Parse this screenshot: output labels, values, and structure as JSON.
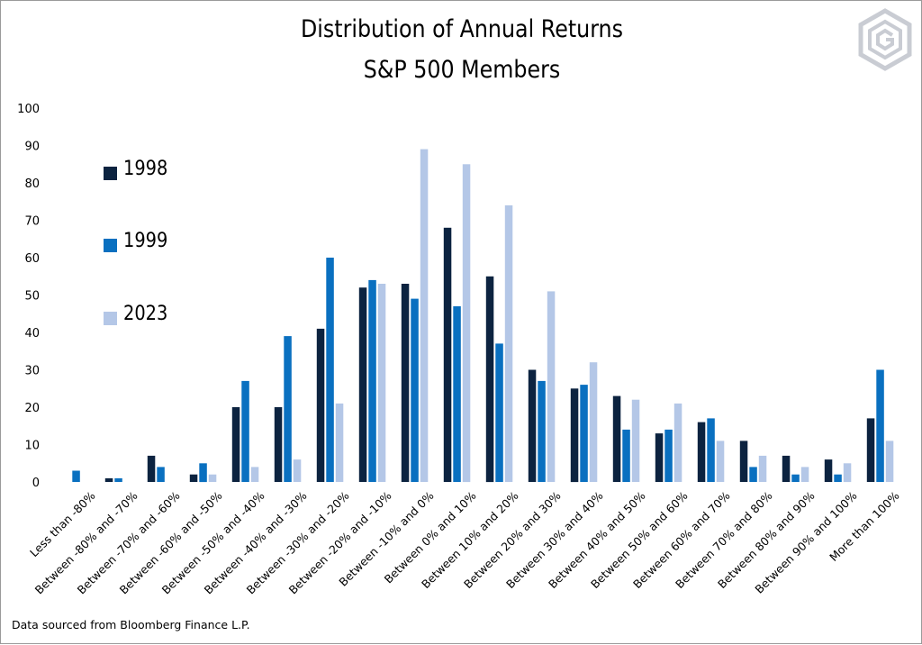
{
  "title": "Distribution of Annual Returns",
  "subtitle": "S&P 500 Members",
  "footnote": "Data sourced from Bloomberg Finance L.P.",
  "logo_icon": "g-hexagon-logo-icon",
  "colors": {
    "1998": "#0c2340",
    "1999": "#0a70c0",
    "2023": "#b4c7e7"
  },
  "chart_data": {
    "type": "bar",
    "title": "Distribution of Annual Returns",
    "subtitle": "S&P 500 Members",
    "xlabel": "",
    "ylabel": "",
    "ylim": [
      0,
      100
    ],
    "yticks": [
      0,
      10,
      20,
      30,
      40,
      50,
      60,
      70,
      80,
      90,
      100
    ],
    "grid": false,
    "legend_position": "left",
    "categories": [
      "Less than -80%",
      "Between -80% and -70%",
      "Between -70% and -60%",
      "Between -60% and -50%",
      "Between -50% and -40%",
      "Between -40% and -30%",
      "Between -30% and -20%",
      "Between -20% and -10%",
      "Between -10% and 0%",
      "Between 0% and 10%",
      "Between 10% and 20%",
      "Between 20% and 30%",
      "Between 30% and 40%",
      "Between 40% and 50%",
      "Between 50% and 60%",
      "Between 60% and 70%",
      "Between 70% and 80%",
      "Between 80% and 90%",
      "Between 90% and 100%",
      "More than 100%"
    ],
    "series": [
      {
        "name": "1998",
        "color": "#0c2340",
        "values": [
          0,
          1,
          7,
          2,
          20,
          20,
          41,
          52,
          53,
          68,
          55,
          30,
          25,
          23,
          13,
          16,
          11,
          7,
          6,
          17
        ]
      },
      {
        "name": "1999",
        "color": "#0a70c0",
        "values": [
          3,
          1,
          4,
          5,
          27,
          39,
          60,
          54,
          49,
          47,
          37,
          27,
          26,
          14,
          14,
          17,
          4,
          2,
          2,
          30
        ]
      },
      {
        "name": "2023",
        "color": "#b4c7e7",
        "values": [
          0,
          0,
          0,
          2,
          4,
          6,
          21,
          53,
          89,
          85,
          74,
          51,
          32,
          22,
          21,
          11,
          7,
          4,
          5,
          11
        ]
      }
    ]
  }
}
